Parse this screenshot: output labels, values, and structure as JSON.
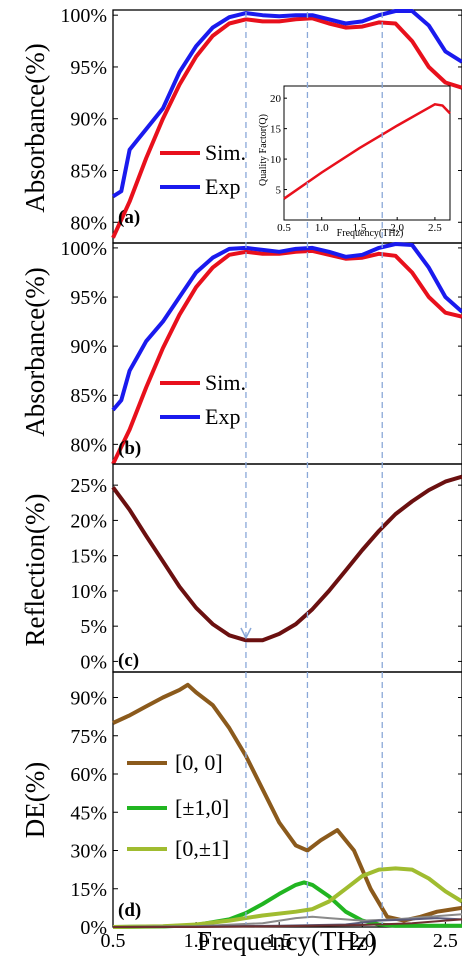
{
  "chart_data": [
    {
      "type": "line",
      "panel_label": "(a)",
      "ylabel": "Absorbance(%)",
      "ylim": [
        78,
        100.5
      ],
      "xlim": [
        0.5,
        2.6
      ],
      "yticks": [
        "80%",
        "85%",
        "90%",
        "95%",
        "100%"
      ],
      "ytick_values": [
        80,
        85,
        90,
        95,
        100
      ],
      "series": [
        {
          "name": "Sim.",
          "color": "#e8101c",
          "x": [
            0.5,
            0.6,
            0.7,
            0.8,
            0.9,
            1.0,
            1.1,
            1.2,
            1.3,
            1.4,
            1.5,
            1.6,
            1.7,
            1.8,
            1.9,
            2.0,
            2.1,
            2.2,
            2.3,
            2.4,
            2.5,
            2.6
          ],
          "values": [
            78.5,
            82,
            86.2,
            90,
            93.3,
            96,
            98,
            99.2,
            99.6,
            99.4,
            99.4,
            99.6,
            99.7,
            99.2,
            98.8,
            98.9,
            99.3,
            99.2,
            97.5,
            95,
            93.5,
            93
          ]
        },
        {
          "name": "Exp",
          "color": "#1a1aee",
          "x": [
            0.5,
            0.55,
            0.6,
            0.65,
            0.7,
            0.8,
            0.9,
            1.0,
            1.1,
            1.2,
            1.3,
            1.4,
            1.5,
            1.6,
            1.7,
            1.8,
            1.9,
            2.0,
            2.1,
            2.2,
            2.3,
            2.4,
            2.5,
            2.6
          ],
          "values": [
            82.5,
            83,
            87,
            88,
            89,
            91,
            94.5,
            97,
            98.8,
            99.8,
            100.2,
            100,
            99.9,
            100,
            100,
            99.6,
            99.2,
            99.4,
            100,
            100.5,
            100.6,
            99,
            96.5,
            95.5
          ]
        }
      ],
      "inset": {
        "xlabel": "Frequency(THz)",
        "ylabel": "Quality Factor(Q)",
        "xticks": [
          "0.5",
          "1.0",
          "1.5",
          "2.0",
          "2.5"
        ],
        "xtick_values": [
          0.5,
          1.0,
          1.5,
          2.0,
          2.5
        ],
        "yticks": [
          "5",
          "10",
          "15",
          "20"
        ],
        "ytick_values": [
          5,
          10,
          15,
          20
        ],
        "xlim": [
          0.5,
          2.7
        ],
        "ylim": [
          0,
          22
        ],
        "x": [
          0.5,
          1.0,
          1.5,
          2.0,
          2.3,
          2.5,
          2.6,
          2.7
        ],
        "values": [
          3.5,
          7.8,
          11.8,
          15.5,
          17.6,
          19,
          18.8,
          17.5
        ]
      }
    },
    {
      "type": "line",
      "panel_label": "(b)",
      "ylabel": "Absorbance(%)",
      "ylim": [
        78,
        100.5
      ],
      "xlim": [
        0.5,
        2.6
      ],
      "yticks": [
        "80%",
        "85%",
        "90%",
        "95%",
        "100%"
      ],
      "ytick_values": [
        80,
        85,
        90,
        95,
        100
      ],
      "series": [
        {
          "name": "Sim.",
          "color": "#e8101c",
          "x": [
            0.5,
            0.6,
            0.7,
            0.8,
            0.9,
            1.0,
            1.1,
            1.2,
            1.3,
            1.4,
            1.5,
            1.6,
            1.7,
            1.8,
            1.9,
            2.0,
            2.1,
            2.2,
            2.3,
            2.4,
            2.5,
            2.6
          ],
          "values": [
            77.5,
            81.5,
            85.8,
            89.8,
            93.2,
            96,
            98,
            99.3,
            99.6,
            99.4,
            99.4,
            99.6,
            99.7,
            99.3,
            98.9,
            99.0,
            99.4,
            99.2,
            97.5,
            95,
            93.4,
            93
          ]
        },
        {
          "name": "Exp",
          "color": "#1a1aee",
          "x": [
            0.5,
            0.55,
            0.6,
            0.65,
            0.7,
            0.8,
            0.9,
            1.0,
            1.1,
            1.2,
            1.3,
            1.4,
            1.5,
            1.6,
            1.7,
            1.8,
            1.9,
            2.0,
            2.1,
            2.2,
            2.3,
            2.4,
            2.5,
            2.6
          ],
          "values": [
            83.5,
            84.5,
            87.5,
            89,
            90.5,
            92.5,
            95,
            97.5,
            99,
            99.9,
            100,
            99.8,
            99.6,
            99.9,
            100,
            99.6,
            99.1,
            99.3,
            100,
            100.5,
            100.3,
            98,
            95,
            93.5
          ]
        }
      ]
    },
    {
      "type": "line",
      "panel_label": "(c)",
      "ylabel": "Reflection(%)",
      "ylim": [
        -1.5,
        28
      ],
      "xlim": [
        0.5,
        2.6
      ],
      "yticks": [
        "0%",
        "5%",
        "10%",
        "15%",
        "20%",
        "25%"
      ],
      "ytick_values": [
        0,
        5,
        10,
        15,
        20,
        25
      ],
      "series": [
        {
          "name": "",
          "color": "#6b1010",
          "x": [
            0.5,
            0.6,
            0.7,
            0.8,
            0.9,
            1.0,
            1.1,
            1.2,
            1.3,
            1.4,
            1.5,
            1.6,
            1.7,
            1.8,
            1.9,
            2.0,
            2.1,
            2.2,
            2.3,
            2.4,
            2.5,
            2.6
          ],
          "values": [
            24.7,
            21.5,
            17.8,
            14.2,
            10.6,
            7.6,
            5.3,
            3.7,
            3.0,
            3.0,
            3.9,
            5.3,
            7.4,
            10.0,
            12.9,
            15.8,
            18.5,
            20.9,
            22.7,
            24.3,
            25.5,
            26.2
          ]
        }
      ]
    },
    {
      "type": "line",
      "panel_label": "(d)",
      "ylabel": "DE(%)",
      "xlabel": "Frequency(THz)",
      "ylim": [
        0,
        100
      ],
      "xlim": [
        0.5,
        2.6
      ],
      "yticks": [
        "0%",
        "15%",
        "30%",
        "45%",
        "60%",
        "75%",
        "90%"
      ],
      "ytick_values": [
        0,
        15,
        30,
        45,
        60,
        75,
        90
      ],
      "xticks": [
        "0.5",
        "1.0",
        "1.5",
        "2.0",
        "2.5"
      ],
      "xtick_values": [
        0.5,
        1.0,
        1.5,
        2.0,
        2.5
      ],
      "series": [
        {
          "name": "[0, 0]",
          "color": "#8b5a1c",
          "x": [
            0.5,
            0.6,
            0.7,
            0.8,
            0.9,
            0.95,
            1.0,
            1.1,
            1.2,
            1.3,
            1.4,
            1.5,
            1.6,
            1.67,
            1.75,
            1.85,
            1.95,
            2.05,
            2.15,
            2.25,
            2.35,
            2.45,
            2.55,
            2.6
          ],
          "values": [
            80,
            83,
            86.5,
            90,
            93,
            95,
            92,
            87,
            78,
            67,
            54,
            41,
            32,
            30,
            34,
            38,
            30,
            15,
            4,
            2.5,
            4,
            6,
            7,
            7.5
          ]
        },
        {
          "name": "[±1,0]",
          "color": "#21b521",
          "x": [
            0.5,
            0.8,
            1.0,
            1.2,
            1.3,
            1.4,
            1.5,
            1.6,
            1.65,
            1.7,
            1.8,
            1.9,
            2.0,
            2.1,
            2.2,
            2.3,
            2.4,
            2.5,
            2.6
          ],
          "values": [
            0,
            0.2,
            0.8,
            3,
            5.5,
            9,
            13,
            16.5,
            17.5,
            16.5,
            12,
            6,
            2.5,
            1,
            0.5,
            0.5,
            0.5,
            0.5,
            0.5
          ]
        },
        {
          "name": "[0,±1]",
          "color": "#a0bc30",
          "x": [
            0.5,
            0.8,
            1.0,
            1.2,
            1.4,
            1.6,
            1.7,
            1.8,
            1.9,
            2.0,
            2.1,
            2.2,
            2.3,
            2.4,
            2.5,
            2.6
          ],
          "values": [
            0,
            0.3,
            1,
            2.5,
            4.5,
            6,
            7,
            10,
            15,
            20,
            22.5,
            23,
            22.5,
            19,
            14,
            10
          ]
        },
        {
          "name": "",
          "color": "#8a8a8a",
          "x": [
            0.5,
            1.0,
            1.4,
            1.6,
            1.7,
            1.8,
            2.0,
            2.2,
            2.4,
            2.6
          ],
          "values": [
            0,
            0.3,
            1.5,
            3.5,
            4,
            3.5,
            2.5,
            3,
            4,
            5
          ]
        },
        {
          "name": "",
          "color": "#5a5a7a",
          "x": [
            0.5,
            1.0,
            1.5,
            1.9,
            2.1,
            2.3,
            2.45,
            2.6
          ],
          "values": [
            0,
            0.2,
            0.5,
            1,
            2.5,
            3,
            3.5,
            3
          ]
        },
        {
          "name": "",
          "color": "#6e3030",
          "x": [
            0.5,
            1.0,
            1.5,
            2.0,
            2.3,
            2.5,
            2.6
          ],
          "values": [
            0,
            0,
            0.3,
            0.8,
            1.5,
            2.5,
            3
          ]
        }
      ]
    }
  ],
  "guides": {
    "color": "#8aa8d8",
    "x": [
      1.3,
      1.67,
      2.12
    ]
  }
}
